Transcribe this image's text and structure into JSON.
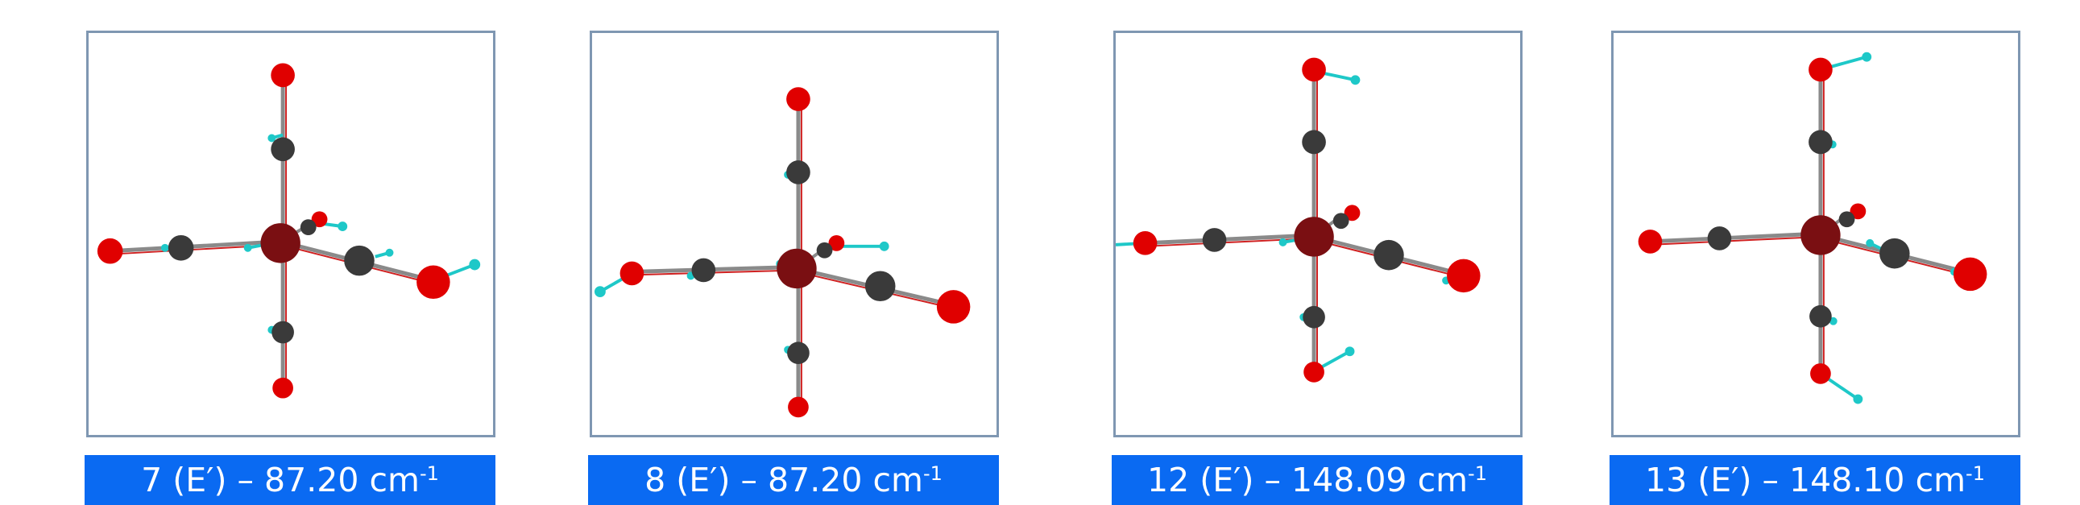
{
  "modes": [
    {
      "number": "7",
      "symmetry": "(E′)",
      "separator": "–",
      "frequency": "87.20",
      "unit": "cm",
      "exponent": "-1"
    },
    {
      "number": "8",
      "symmetry": "(E′)",
      "separator": "–",
      "frequency": "87.20",
      "unit": "cm",
      "exponent": "-1"
    },
    {
      "number": "12",
      "symmetry": "(E′)",
      "separator": "–",
      "frequency": "148.09",
      "unit": "cm",
      "exponent": "-1"
    },
    {
      "number": "13",
      "symmetry": "(E′)",
      "separator": "–",
      "frequency": "148.10",
      "unit": "cm",
      "exponent": "-1"
    }
  ],
  "colors": {
    "metal": "#7a0f12",
    "carbon": "#3a3a3a",
    "oxygen": "#e00000",
    "bond_gray": "#8a8a8a",
    "bond_red": "#d02020",
    "vector": "#1ec8c8",
    "frame": "#7f97b2",
    "caption_bg": "#0a6af2",
    "caption_text": "#ffffff"
  }
}
